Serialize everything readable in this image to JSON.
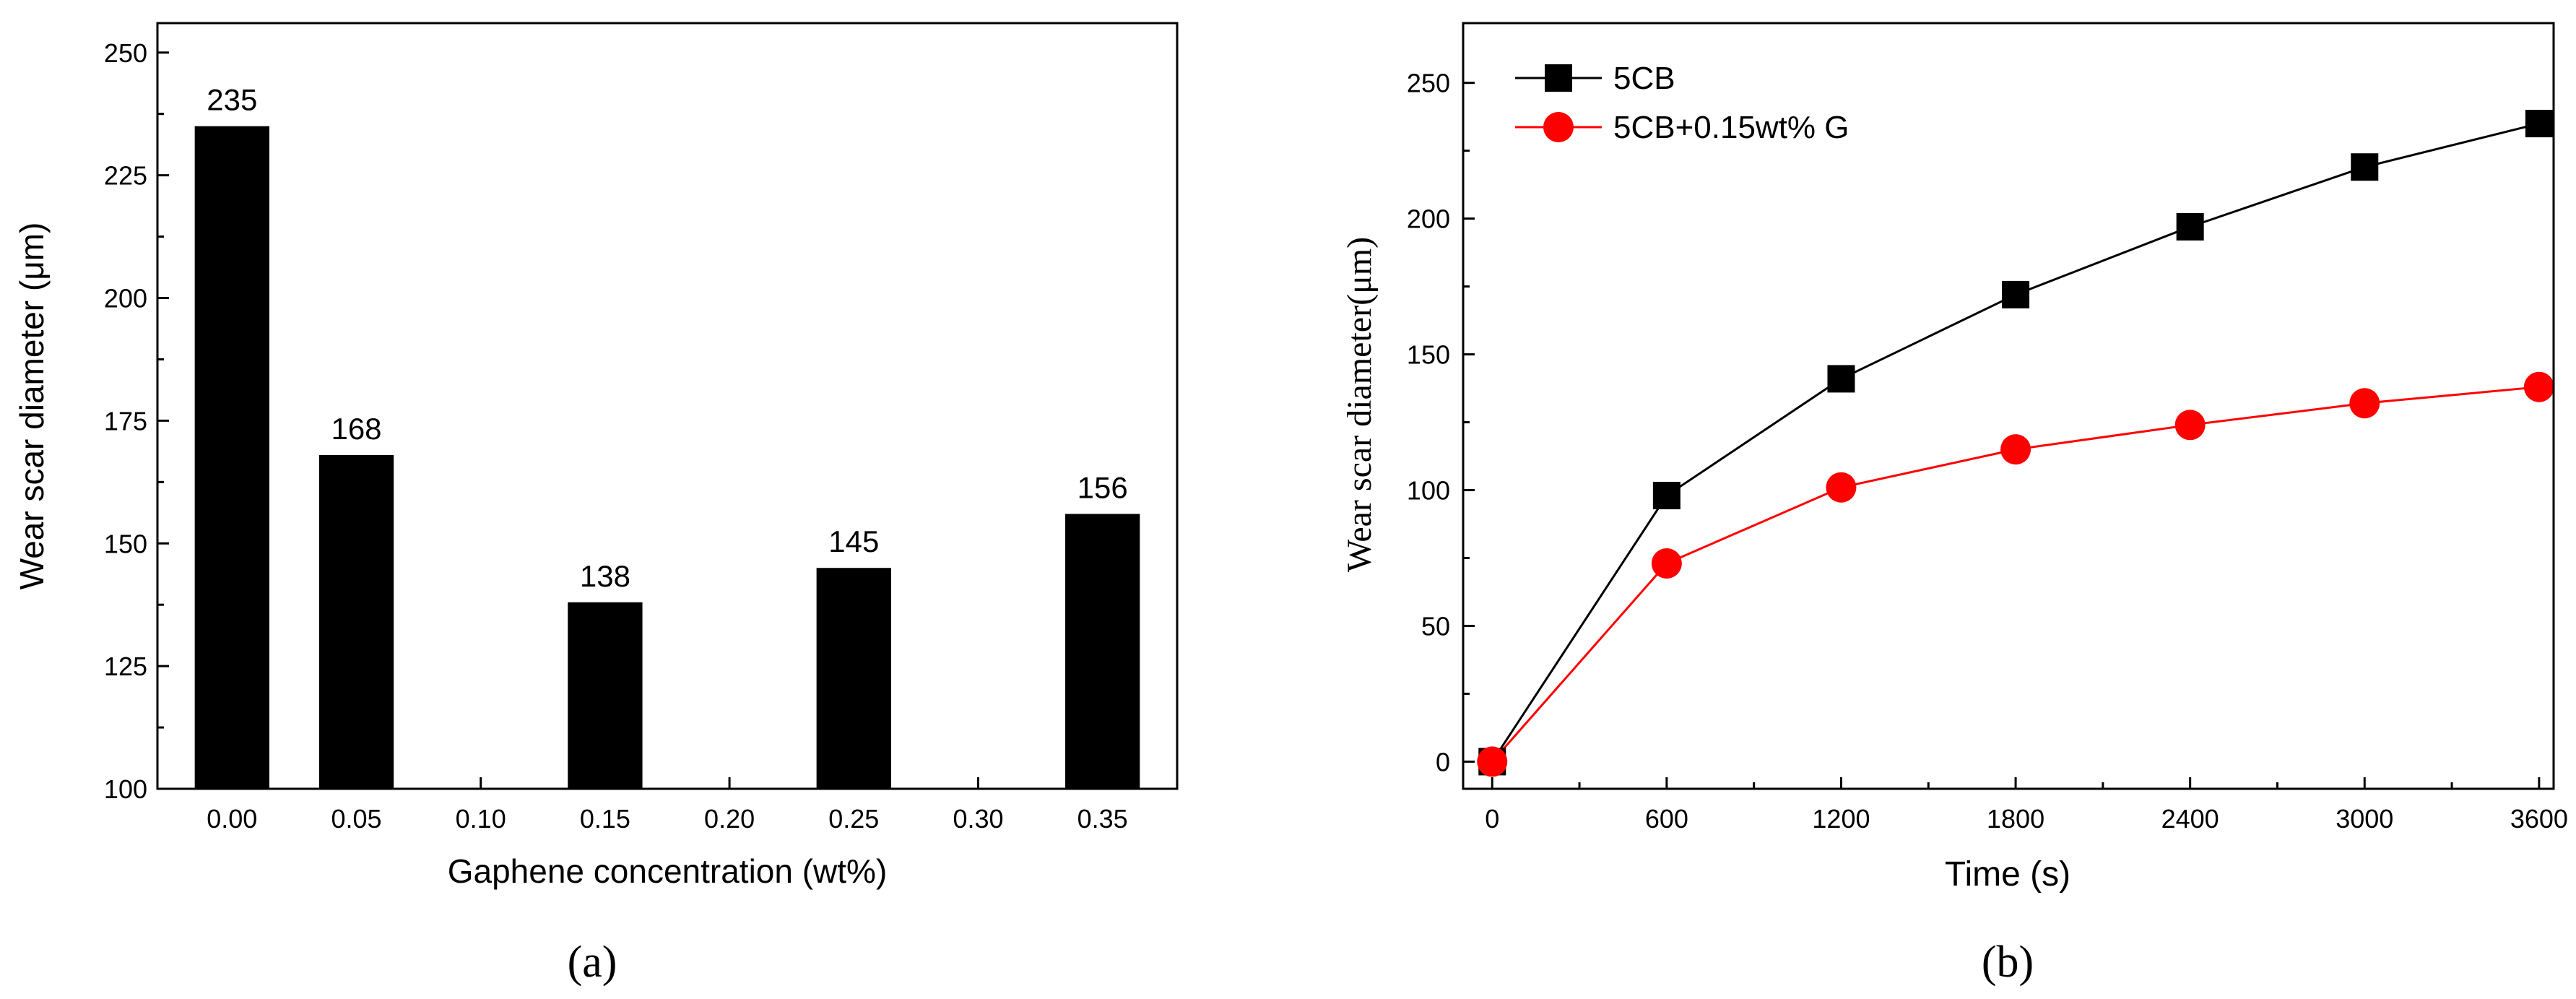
{
  "chart_data": [
    {
      "panel": "a",
      "panel_label": "(a)",
      "type": "bar",
      "categories": [
        "0.00",
        "0.05",
        "0.15",
        "0.25",
        "0.35"
      ],
      "x": [
        0.0,
        0.05,
        0.15,
        0.25,
        0.35
      ],
      "values": [
        235,
        168,
        138,
        145,
        156
      ],
      "data_labels": [
        "235",
        "168",
        "138",
        "145",
        "156"
      ],
      "xlabel": "Gaphene concentration (wt%)",
      "ylabel": "Wear scar diameter (μm)",
      "xlim": [
        -0.03,
        0.38
      ],
      "ylim": [
        100,
        256
      ],
      "xticks": [
        "0.00",
        "0.05",
        "0.10",
        "0.15",
        "0.20",
        "0.25",
        "0.30",
        "0.35"
      ],
      "yticks": [
        "100",
        "125",
        "150",
        "175",
        "200",
        "225",
        "250"
      ],
      "bar_color": "#000000"
    },
    {
      "panel": "b",
      "panel_label": "(b)",
      "type": "line",
      "x": [
        0,
        600,
        1200,
        1800,
        2400,
        3000,
        3600
      ],
      "series": [
        {
          "name": "5CB",
          "values": [
            0,
            98,
            141,
            172,
            197,
            219,
            235
          ],
          "color": "#000000",
          "marker": "square"
        },
        {
          "name": "5CB+0.15wt% G",
          "values": [
            0,
            73,
            101,
            115,
            124,
            132,
            138
          ],
          "color": "#ff0000",
          "marker": "circle"
        }
      ],
      "xlabel": "Time (s)",
      "ylabel": "Wear scar diameter(μm)",
      "xlim": [
        -100,
        3650
      ],
      "ylim": [
        -10,
        272
      ],
      "xticks": [
        "0",
        "600",
        "1200",
        "1800",
        "2400",
        "3000",
        "3600"
      ],
      "yticks": [
        "0",
        "50",
        "100",
        "150",
        "200",
        "250"
      ],
      "legend_position": "top-left"
    }
  ]
}
